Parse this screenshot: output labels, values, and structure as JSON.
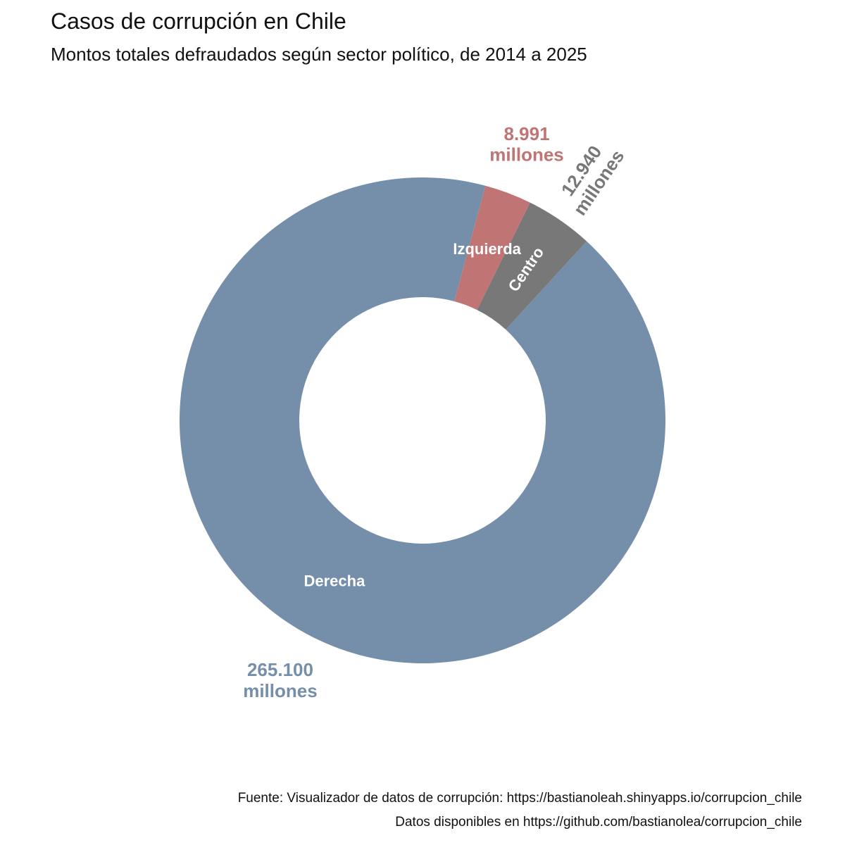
{
  "title": "Casos de corrupción en Chile",
  "subtitle": "Montos totales defraudados según sector político, de 2014 a 2025",
  "caption_line1": "Fuente: Visualizador de datos de corrupción: https://bastianoleah.shinyapps.io/corrupcion_chile",
  "caption_line2": "Datos disponibles en https://github.com/bastianolea/corrupcion_chile",
  "chart_data": {
    "type": "pie",
    "variant": "donut",
    "title": "Casos de corrupción en Chile",
    "subtitle": "Montos totales defraudados según sector político, de 2014 a 2025",
    "unit": "millones",
    "slices": [
      {
        "name": "Derecha",
        "value": 265100,
        "value_label": "265.100",
        "unit_label": "millones",
        "color": "#758ea9"
      },
      {
        "name": "Centro",
        "value": 12940,
        "value_label": "12.940",
        "unit_label": "millones",
        "color": "#787878"
      },
      {
        "name": "Izquierda",
        "value": 8991,
        "value_label": "8.991",
        "unit_label": "millones",
        "color": "#c07474"
      }
    ]
  }
}
